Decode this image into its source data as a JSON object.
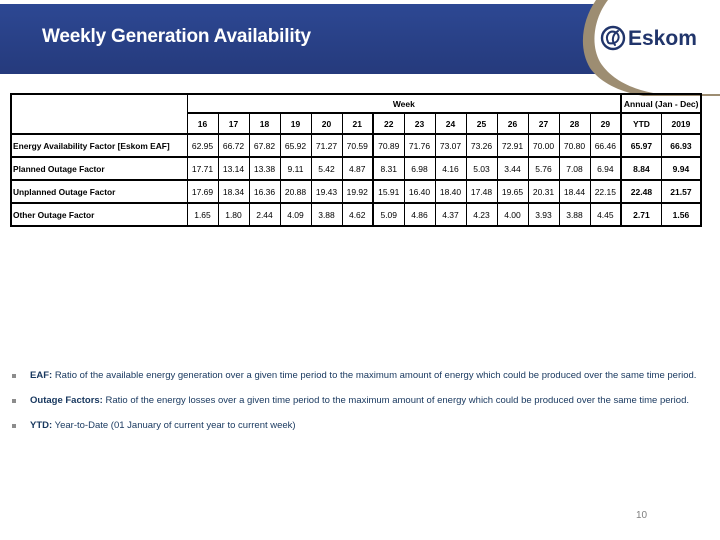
{
  "header": {
    "title": "Weekly Generation Availability",
    "logo_text": "Eskom"
  },
  "table": {
    "week_header": "Week",
    "annual_header": "Annual (Jan - Dec)",
    "week_numbers": [
      "16",
      "17",
      "18",
      "19",
      "20",
      "21",
      "22",
      "23",
      "24",
      "25",
      "26",
      "27",
      "28",
      "29"
    ],
    "annual_columns": [
      "YTD",
      "2019"
    ],
    "rows": [
      {
        "label": "Energy Availability Factor [Eskom EAF]",
        "values": [
          "62.95",
          "66.72",
          "67.82",
          "65.92",
          "71.27",
          "70.59",
          "70.89",
          "71.76",
          "73.07",
          "73.26",
          "72.91",
          "70.00",
          "70.80",
          "66.46"
        ],
        "ytd": "65.97",
        "annual": "66.93"
      },
      {
        "label": "Planned Outage Factor",
        "values": [
          "17.71",
          "13.14",
          "13.38",
          "9.11",
          "5.42",
          "4.87",
          "8.31",
          "6.98",
          "4.16",
          "5.03",
          "3.44",
          "5.76",
          "7.08",
          "6.94"
        ],
        "ytd": "8.84",
        "annual": "9.94"
      },
      {
        "label": "Unplanned Outage Factor",
        "values": [
          "17.69",
          "18.34",
          "16.36",
          "20.88",
          "19.43",
          "19.92",
          "15.91",
          "16.40",
          "18.40",
          "17.48",
          "19.65",
          "20.31",
          "18.44",
          "22.15"
        ],
        "ytd": "22.48",
        "annual": "21.57"
      },
      {
        "label": "Other Outage Factor",
        "values": [
          "1.65",
          "1.80",
          "2.44",
          "4.09",
          "3.88",
          "4.62",
          "5.09",
          "4.86",
          "4.37",
          "4.23",
          "4.00",
          "3.93",
          "3.88",
          "4.45"
        ],
        "ytd": "2.71",
        "annual": "1.56"
      }
    ]
  },
  "bullets": [
    {
      "term": "EAF:",
      "text": "Ratio of the available energy generation over a given time period to the maximum amount of energy which could be produced over the same time period."
    },
    {
      "term": "Outage Factors:",
      "text": "Ratio of the energy losses over a given time period to the maximum amount of energy which could be produced over the same time period."
    },
    {
      "term": "YTD:",
      "text": "Year-to-Date (01 January of current year to current week)"
    }
  ],
  "footer": {
    "page_number": "10"
  },
  "colors": {
    "header_blue": "#2a4086",
    "logo_navy": "#21356b",
    "tan_accent": "#9d8d72",
    "text_navy": "#17375e",
    "bullet_gray": "#8c8c8c"
  }
}
